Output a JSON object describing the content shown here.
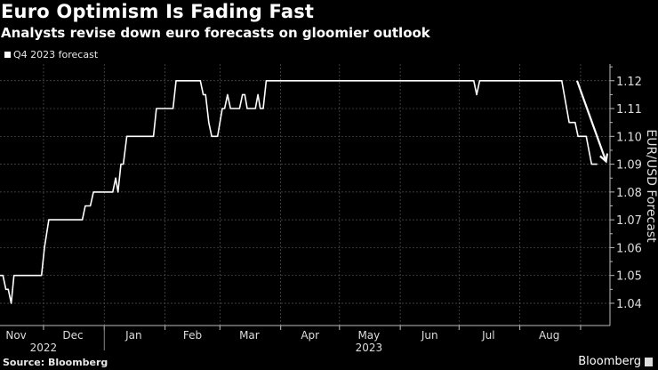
{
  "chart_data": {
    "type": "line",
    "title": "Euro Optimism Is Fading Fast",
    "subtitle": "Analysts revise down euro forecasts on gloomier outlook",
    "legend": [
      {
        "label": "Q4 2023 forecast",
        "color": "#ffffff"
      }
    ],
    "legend_placement": "top-left",
    "xlabel": "",
    "ylabel": "EUR/USD Forecast",
    "x_units": "days since 2022-11-01",
    "xlim": [
      7.8,
      319
    ],
    "ylim": [
      1.032,
      1.126
    ],
    "grid": true,
    "yticks": [
      1.04,
      1.05,
      1.06,
      1.07,
      1.08,
      1.09,
      1.1,
      1.11,
      1.12
    ],
    "ytick_labels": [
      "1.04",
      "1.05",
      "1.06",
      "1.07",
      "1.08",
      "1.09",
      "1.10",
      "1.11",
      "1.12"
    ],
    "month_boundaries": [
      30,
      61,
      92,
      120,
      151,
      181,
      212,
      242,
      273,
      304
    ],
    "month_labels": [
      {
        "label": "Nov",
        "x": 16
      },
      {
        "label": "Dec",
        "x": 45
      },
      {
        "label": "Jan",
        "x": 76
      },
      {
        "label": "Feb",
        "x": 106
      },
      {
        "label": "Mar",
        "x": 135
      },
      {
        "label": "Apr",
        "x": 166
      },
      {
        "label": "May",
        "x": 196
      },
      {
        "label": "Jun",
        "x": 227
      },
      {
        "label": "Jul",
        "x": 257
      },
      {
        "label": "Aug",
        "x": 288
      }
    ],
    "year_labels": [
      {
        "label": "2022",
        "x": 30
      },
      {
        "label": "2023",
        "x": 196
      }
    ],
    "year_boundary": 61,
    "series": [
      {
        "name": "Q4 2023 forecast",
        "x": [
          7.8,
          9.3,
          10.8,
          12,
          13.5,
          14.9,
          29,
          30.5,
          32.7,
          49.8,
          51.3,
          53.9,
          55.5,
          65.3,
          66.8,
          68,
          69.5,
          70.7,
          72.5,
          86.1,
          87.6,
          96.1,
          97.6,
          110,
          111.5,
          112.7,
          114.3,
          115.8,
          118.8,
          121.2,
          122.4,
          123.9,
          125.4,
          130,
          131.5,
          132.7,
          133.9,
          138.1,
          139.4,
          140.6,
          142.1,
          143.6,
          249.5,
          251,
          252.5,
          294.4,
          298.2,
          301.2,
          302.7,
          306.9,
          309.6,
          312.5
        ],
        "values": [
          1.05,
          1.05,
          1.045,
          1.045,
          1.04,
          1.05,
          1.05,
          1.06,
          1.07,
          1.07,
          1.075,
          1.075,
          1.08,
          1.08,
          1.085,
          1.08,
          1.09,
          1.09,
          1.1,
          1.1,
          1.11,
          1.11,
          1.12,
          1.12,
          1.115,
          1.115,
          1.105,
          1.1,
          1.1,
          1.11,
          1.11,
          1.115,
          1.11,
          1.11,
          1.115,
          1.115,
          1.11,
          1.11,
          1.115,
          1.11,
          1.11,
          1.12,
          1.12,
          1.115,
          1.12,
          1.12,
          1.105,
          1.105,
          1.1,
          1.1,
          1.09,
          1.09
        ]
      }
    ],
    "annotations": [
      {
        "type": "arrow",
        "from": [
          302.2,
          1.12
        ],
        "to": [
          317,
          1.091
        ]
      }
    ],
    "source": "Source: Bloomberg",
    "brand": "Bloomberg"
  }
}
